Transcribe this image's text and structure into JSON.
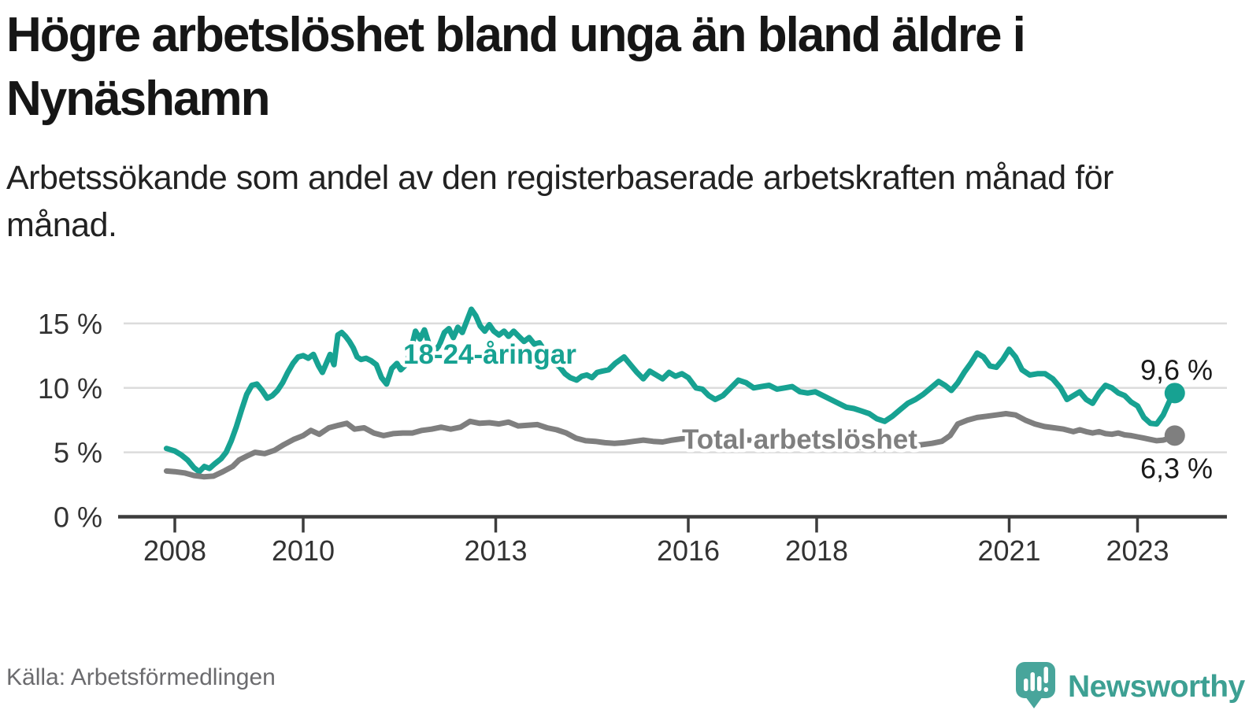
{
  "header": {
    "title": "Högre arbetslöshet bland unga än bland äldre i Nynäshamn",
    "subtitle": "Arbetssökande som andel av den registerbaserade arbetskraften månad för månad."
  },
  "footer": {
    "source": "Källa: Arbetsförmedlingen",
    "logo_text": "Newsworthy"
  },
  "colors": {
    "youth_line": "#17a292",
    "total_line": "#7f7f7f",
    "grid": "#dcdcdc",
    "axis": "#3c3c3c",
    "label_text": "#1a1a1a",
    "logo_teal": "#48a59b",
    "logo_text_teal": "#3da093"
  },
  "chart_data": {
    "type": "line",
    "unit": "%",
    "grid": "horizontal",
    "legend_position": "inline-labels",
    "xlim": [
      2007.1,
      2024.2
    ],
    "ylim": [
      0,
      16.5
    ],
    "x_axis": {
      "ticks": [
        2008,
        2010,
        2013,
        2016,
        2018,
        2021,
        2023
      ]
    },
    "y_axis": {
      "ticks": [
        {
          "value": 0,
          "label": "0 %"
        },
        {
          "value": 5,
          "label": "5 %"
        },
        {
          "value": 10,
          "label": "10 %"
        },
        {
          "value": 15,
          "label": "15 %"
        }
      ]
    },
    "series": [
      {
        "name": "18-24-åringar",
        "color": "#17a292",
        "end_label": "9,6 %",
        "last_value": 9.6,
        "points": [
          [
            2007.87,
            5.3
          ],
          [
            2008.0,
            5.1
          ],
          [
            2008.1,
            4.8
          ],
          [
            2008.2,
            4.4
          ],
          [
            2008.3,
            3.8
          ],
          [
            2008.38,
            3.5
          ],
          [
            2008.46,
            3.9
          ],
          [
            2008.54,
            3.75
          ],
          [
            2008.62,
            4.1
          ],
          [
            2008.72,
            4.5
          ],
          [
            2008.8,
            5.0
          ],
          [
            2008.88,
            5.9
          ],
          [
            2008.96,
            7.0
          ],
          [
            2009.04,
            8.3
          ],
          [
            2009.12,
            9.5
          ],
          [
            2009.2,
            10.2
          ],
          [
            2009.28,
            10.3
          ],
          [
            2009.36,
            9.8
          ],
          [
            2009.44,
            9.2
          ],
          [
            2009.52,
            9.4
          ],
          [
            2009.6,
            9.8
          ],
          [
            2009.68,
            10.4
          ],
          [
            2009.76,
            11.2
          ],
          [
            2009.84,
            11.9
          ],
          [
            2009.92,
            12.4
          ],
          [
            2010.0,
            12.5
          ],
          [
            2010.08,
            12.3
          ],
          [
            2010.16,
            12.6
          ],
          [
            2010.24,
            11.7
          ],
          [
            2010.3,
            11.2
          ],
          [
            2010.36,
            11.9
          ],
          [
            2010.42,
            12.6
          ],
          [
            2010.48,
            11.8
          ],
          [
            2010.54,
            14.1
          ],
          [
            2010.6,
            14.3
          ],
          [
            2010.66,
            14.0
          ],
          [
            2010.72,
            13.6
          ],
          [
            2010.78,
            13.1
          ],
          [
            2010.84,
            12.4
          ],
          [
            2010.9,
            12.2
          ],
          [
            2010.98,
            12.3
          ],
          [
            2011.06,
            12.1
          ],
          [
            2011.14,
            11.8
          ],
          [
            2011.22,
            10.8
          ],
          [
            2011.3,
            10.3
          ],
          [
            2011.38,
            11.5
          ],
          [
            2011.46,
            11.9
          ],
          [
            2011.52,
            11.4
          ],
          [
            2011.6,
            11.8
          ],
          [
            2011.68,
            13.0
          ],
          [
            2011.75,
            14.4
          ],
          [
            2011.82,
            13.8
          ],
          [
            2011.89,
            14.5
          ],
          [
            2011.96,
            13.4
          ],
          [
            2012.04,
            12.8
          ],
          [
            2012.12,
            13.3
          ],
          [
            2012.2,
            14.3
          ],
          [
            2012.27,
            14.6
          ],
          [
            2012.34,
            13.9
          ],
          [
            2012.41,
            14.7
          ],
          [
            2012.48,
            14.3
          ],
          [
            2012.55,
            15.2
          ],
          [
            2012.62,
            16.1
          ],
          [
            2012.69,
            15.6
          ],
          [
            2012.76,
            14.8
          ],
          [
            2012.83,
            14.4
          ],
          [
            2012.9,
            14.9
          ],
          [
            2012.97,
            14.4
          ],
          [
            2013.05,
            14.1
          ],
          [
            2013.13,
            14.4
          ],
          [
            2013.2,
            14.0
          ],
          [
            2013.28,
            14.4
          ],
          [
            2013.36,
            14.0
          ],
          [
            2013.44,
            13.6
          ],
          [
            2013.52,
            13.9
          ],
          [
            2013.6,
            13.4
          ],
          [
            2013.68,
            13.5
          ],
          [
            2013.76,
            12.9
          ],
          [
            2013.84,
            12.4
          ],
          [
            2013.92,
            11.9
          ],
          [
            2014.0,
            11.6
          ],
          [
            2014.08,
            11.1
          ],
          [
            2014.16,
            10.8
          ],
          [
            2014.26,
            10.6
          ],
          [
            2014.34,
            10.9
          ],
          [
            2014.42,
            11.0
          ],
          [
            2014.5,
            10.8
          ],
          [
            2014.58,
            11.2
          ],
          [
            2014.66,
            11.3
          ],
          [
            2014.76,
            11.4
          ],
          [
            2014.86,
            11.9
          ],
          [
            2015.0,
            12.4
          ],
          [
            2015.1,
            11.8
          ],
          [
            2015.2,
            11.2
          ],
          [
            2015.3,
            10.7
          ],
          [
            2015.4,
            11.3
          ],
          [
            2015.5,
            11.0
          ],
          [
            2015.6,
            10.7
          ],
          [
            2015.7,
            11.2
          ],
          [
            2015.8,
            10.9
          ],
          [
            2015.9,
            11.1
          ],
          [
            2016.0,
            10.8
          ],
          [
            2016.12,
            10.0
          ],
          [
            2016.22,
            9.9
          ],
          [
            2016.32,
            9.4
          ],
          [
            2016.42,
            9.1
          ],
          [
            2016.54,
            9.4
          ],
          [
            2016.66,
            10.0
          ],
          [
            2016.78,
            10.6
          ],
          [
            2016.9,
            10.4
          ],
          [
            2017.02,
            10.0
          ],
          [
            2017.14,
            10.1
          ],
          [
            2017.26,
            10.2
          ],
          [
            2017.38,
            9.9
          ],
          [
            2017.5,
            10.0
          ],
          [
            2017.62,
            10.1
          ],
          [
            2017.74,
            9.7
          ],
          [
            2017.86,
            9.6
          ],
          [
            2017.98,
            9.7
          ],
          [
            2018.1,
            9.4
          ],
          [
            2018.22,
            9.1
          ],
          [
            2018.34,
            8.8
          ],
          [
            2018.46,
            8.5
          ],
          [
            2018.58,
            8.4
          ],
          [
            2018.7,
            8.2
          ],
          [
            2018.82,
            8.0
          ],
          [
            2018.94,
            7.6
          ],
          [
            2019.06,
            7.4
          ],
          [
            2019.18,
            7.8
          ],
          [
            2019.3,
            8.3
          ],
          [
            2019.42,
            8.8
          ],
          [
            2019.54,
            9.1
          ],
          [
            2019.66,
            9.5
          ],
          [
            2019.78,
            10.0
          ],
          [
            2019.9,
            10.5
          ],
          [
            2020.0,
            10.2
          ],
          [
            2020.1,
            9.8
          ],
          [
            2020.2,
            10.4
          ],
          [
            2020.3,
            11.2
          ],
          [
            2020.4,
            11.9
          ],
          [
            2020.5,
            12.7
          ],
          [
            2020.6,
            12.4
          ],
          [
            2020.7,
            11.7
          ],
          [
            2020.8,
            11.6
          ],
          [
            2020.9,
            12.2
          ],
          [
            2021.0,
            13.0
          ],
          [
            2021.1,
            12.4
          ],
          [
            2021.2,
            11.4
          ],
          [
            2021.32,
            11.0
          ],
          [
            2021.44,
            11.1
          ],
          [
            2021.56,
            11.1
          ],
          [
            2021.68,
            10.7
          ],
          [
            2021.8,
            10.0
          ],
          [
            2021.9,
            9.1
          ],
          [
            2022.0,
            9.4
          ],
          [
            2022.1,
            9.7
          ],
          [
            2022.2,
            9.1
          ],
          [
            2022.3,
            8.8
          ],
          [
            2022.4,
            9.6
          ],
          [
            2022.5,
            10.2
          ],
          [
            2022.6,
            10.0
          ],
          [
            2022.7,
            9.6
          ],
          [
            2022.8,
            9.4
          ],
          [
            2022.9,
            8.9
          ],
          [
            2023.0,
            8.6
          ],
          [
            2023.1,
            7.7
          ],
          [
            2023.2,
            7.25
          ],
          [
            2023.3,
            7.2
          ],
          [
            2023.4,
            7.9
          ],
          [
            2023.5,
            9.0
          ],
          [
            2023.58,
            9.6
          ]
        ]
      },
      {
        "name": "Total arbetslöshet",
        "color": "#7f7f7f",
        "end_label": "6,3 %",
        "last_value": 6.3,
        "points": [
          [
            2007.87,
            3.55
          ],
          [
            2008.0,
            3.5
          ],
          [
            2008.15,
            3.4
          ],
          [
            2008.3,
            3.2
          ],
          [
            2008.45,
            3.1
          ],
          [
            2008.6,
            3.15
          ],
          [
            2008.75,
            3.5
          ],
          [
            2008.9,
            3.9
          ],
          [
            2009.0,
            4.4
          ],
          [
            2009.12,
            4.7
          ],
          [
            2009.25,
            5.0
          ],
          [
            2009.4,
            4.9
          ],
          [
            2009.55,
            5.15
          ],
          [
            2009.7,
            5.6
          ],
          [
            2009.85,
            6.0
          ],
          [
            2010.0,
            6.3
          ],
          [
            2010.12,
            6.7
          ],
          [
            2010.25,
            6.4
          ],
          [
            2010.4,
            6.9
          ],
          [
            2010.55,
            7.1
          ],
          [
            2010.68,
            7.25
          ],
          [
            2010.8,
            6.8
          ],
          [
            2010.95,
            6.9
          ],
          [
            2011.1,
            6.5
          ],
          [
            2011.25,
            6.3
          ],
          [
            2011.4,
            6.45
          ],
          [
            2011.55,
            6.5
          ],
          [
            2011.7,
            6.5
          ],
          [
            2011.85,
            6.7
          ],
          [
            2012.0,
            6.8
          ],
          [
            2012.15,
            6.95
          ],
          [
            2012.3,
            6.8
          ],
          [
            2012.45,
            6.95
          ],
          [
            2012.6,
            7.4
          ],
          [
            2012.75,
            7.25
          ],
          [
            2012.9,
            7.3
          ],
          [
            2013.05,
            7.2
          ],
          [
            2013.2,
            7.35
          ],
          [
            2013.35,
            7.05
          ],
          [
            2013.5,
            7.1
          ],
          [
            2013.65,
            7.15
          ],
          [
            2013.8,
            6.9
          ],
          [
            2013.95,
            6.75
          ],
          [
            2014.1,
            6.5
          ],
          [
            2014.25,
            6.1
          ],
          [
            2014.4,
            5.9
          ],
          [
            2014.55,
            5.85
          ],
          [
            2014.7,
            5.75
          ],
          [
            2014.85,
            5.7
          ],
          [
            2015.0,
            5.75
          ],
          [
            2015.15,
            5.85
          ],
          [
            2015.3,
            5.95
          ],
          [
            2015.45,
            5.85
          ],
          [
            2015.6,
            5.8
          ],
          [
            2015.75,
            5.95
          ],
          [
            2015.9,
            6.05
          ],
          [
            2016.05,
            6.15
          ],
          [
            2016.2,
            6.0
          ],
          [
            2016.35,
            5.9
          ],
          [
            2016.5,
            5.85
          ],
          [
            2016.65,
            5.9
          ],
          [
            2016.8,
            5.95
          ],
          [
            2016.95,
            5.95
          ],
          [
            2017.1,
            5.9
          ],
          [
            2017.25,
            5.85
          ],
          [
            2017.4,
            5.8
          ],
          [
            2017.55,
            5.75
          ],
          [
            2017.7,
            5.7
          ],
          [
            2017.85,
            5.65
          ],
          [
            2018.0,
            5.6
          ],
          [
            2018.15,
            5.5
          ],
          [
            2018.3,
            5.45
          ],
          [
            2018.45,
            5.4
          ],
          [
            2018.6,
            5.4
          ],
          [
            2018.75,
            5.35
          ],
          [
            2018.9,
            5.3
          ],
          [
            2019.05,
            5.3
          ],
          [
            2019.2,
            5.35
          ],
          [
            2019.35,
            5.45
          ],
          [
            2019.5,
            5.5
          ],
          [
            2019.65,
            5.6
          ],
          [
            2019.8,
            5.7
          ],
          [
            2019.95,
            5.85
          ],
          [
            2020.08,
            6.3
          ],
          [
            2020.2,
            7.2
          ],
          [
            2020.35,
            7.5
          ],
          [
            2020.5,
            7.7
          ],
          [
            2020.65,
            7.8
          ],
          [
            2020.8,
            7.9
          ],
          [
            2020.95,
            8.0
          ],
          [
            2021.1,
            7.9
          ],
          [
            2021.25,
            7.5
          ],
          [
            2021.4,
            7.2
          ],
          [
            2021.55,
            7.0
          ],
          [
            2021.7,
            6.9
          ],
          [
            2021.85,
            6.8
          ],
          [
            2022.0,
            6.6
          ],
          [
            2022.1,
            6.75
          ],
          [
            2022.2,
            6.6
          ],
          [
            2022.3,
            6.5
          ],
          [
            2022.4,
            6.6
          ],
          [
            2022.5,
            6.45
          ],
          [
            2022.6,
            6.4
          ],
          [
            2022.7,
            6.5
          ],
          [
            2022.8,
            6.35
          ],
          [
            2022.9,
            6.3
          ],
          [
            2023.0,
            6.2
          ],
          [
            2023.1,
            6.1
          ],
          [
            2023.2,
            6.0
          ],
          [
            2023.3,
            5.9
          ],
          [
            2023.4,
            5.95
          ],
          [
            2023.5,
            6.1
          ],
          [
            2023.58,
            6.3
          ]
        ]
      }
    ]
  }
}
